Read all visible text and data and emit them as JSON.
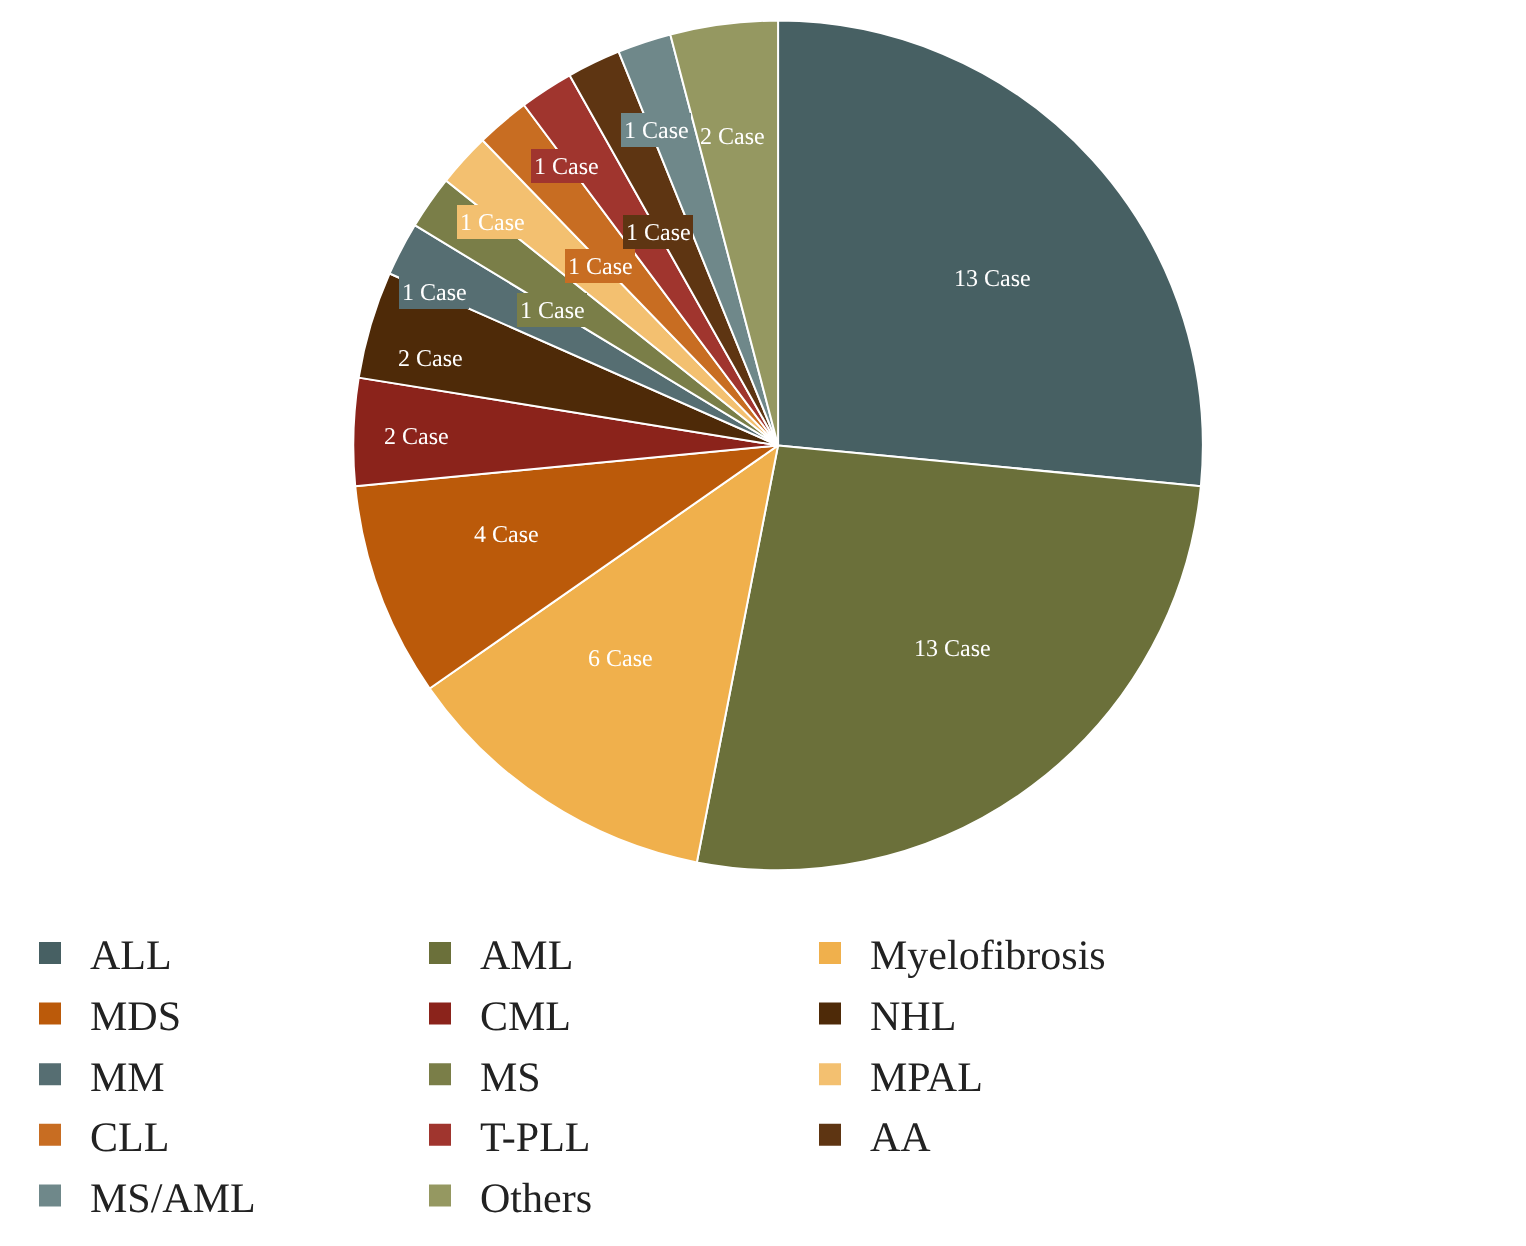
{
  "chart_data": {
    "type": "pie",
    "categories": [
      "ALL",
      "AML",
      "Myelofibrosis",
      "MDS",
      "CML",
      "NHL",
      "MM",
      "MS",
      "MPAL",
      "CLL",
      "T-PLL",
      "AA",
      "MS/AML",
      "Others"
    ],
    "values": [
      13,
      13,
      6,
      4,
      2,
      2,
      1,
      1,
      1,
      1,
      1,
      1,
      1,
      2
    ],
    "value_labels": [
      "13 Case",
      "13 Case",
      "6 Case",
      "4 Case",
      "2 Case",
      "2 Case",
      "1 Case",
      "1 Case",
      "1 Case",
      "1 Case",
      "1 Case",
      "1 Case",
      "1 Case",
      "2 Case"
    ],
    "colors": [
      "#476063",
      "#6b703a",
      "#f0b04c",
      "#bb5a0a",
      "#8b231b",
      "#4e2a08",
      "#566e72",
      "#7a7e48",
      "#f3c070",
      "#c86d22",
      "#a0352e",
      "#5e3512",
      "#6f888a",
      "#959861"
    ],
    "legend": "bottom"
  }
}
